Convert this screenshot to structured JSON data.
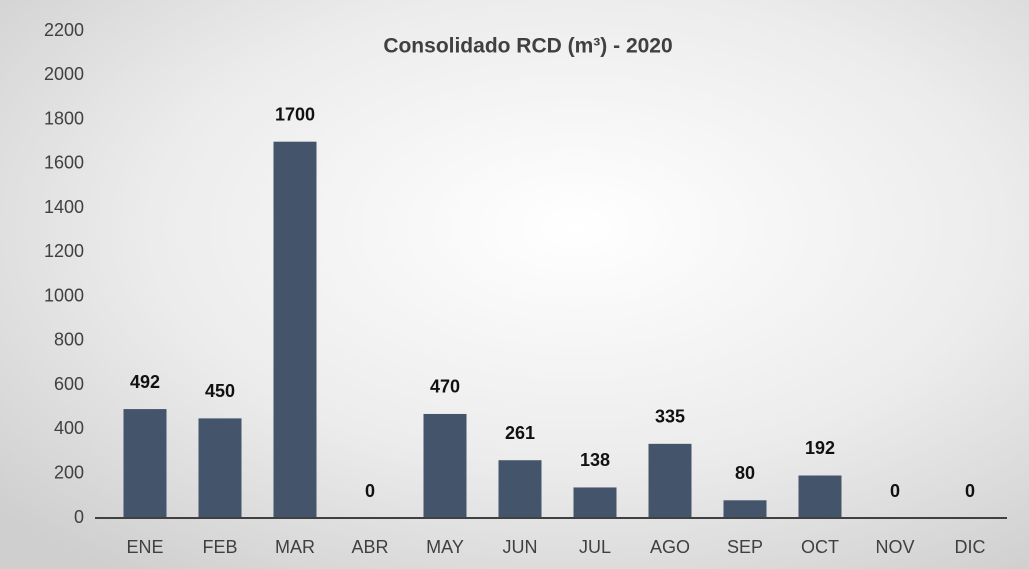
{
  "chart_data": {
    "type": "bar",
    "title": "Consolidado RCD (m³) - 2020",
    "categories": [
      "ENE",
      "FEB",
      "MAR",
      "ABR",
      "MAY",
      "JUN",
      "JUL",
      "AGO",
      "SEP",
      "OCT",
      "NOV",
      "DIC"
    ],
    "values": [
      492,
      450,
      1700,
      0,
      470,
      261,
      138,
      335,
      80,
      192,
      0,
      0
    ],
    "color": "#44546a",
    "ylim": [
      0,
      2200
    ],
    "yticks": [
      0,
      200,
      400,
      600,
      800,
      1000,
      1200,
      1400,
      1600,
      1800,
      2000,
      2200
    ],
    "grid": false
  }
}
